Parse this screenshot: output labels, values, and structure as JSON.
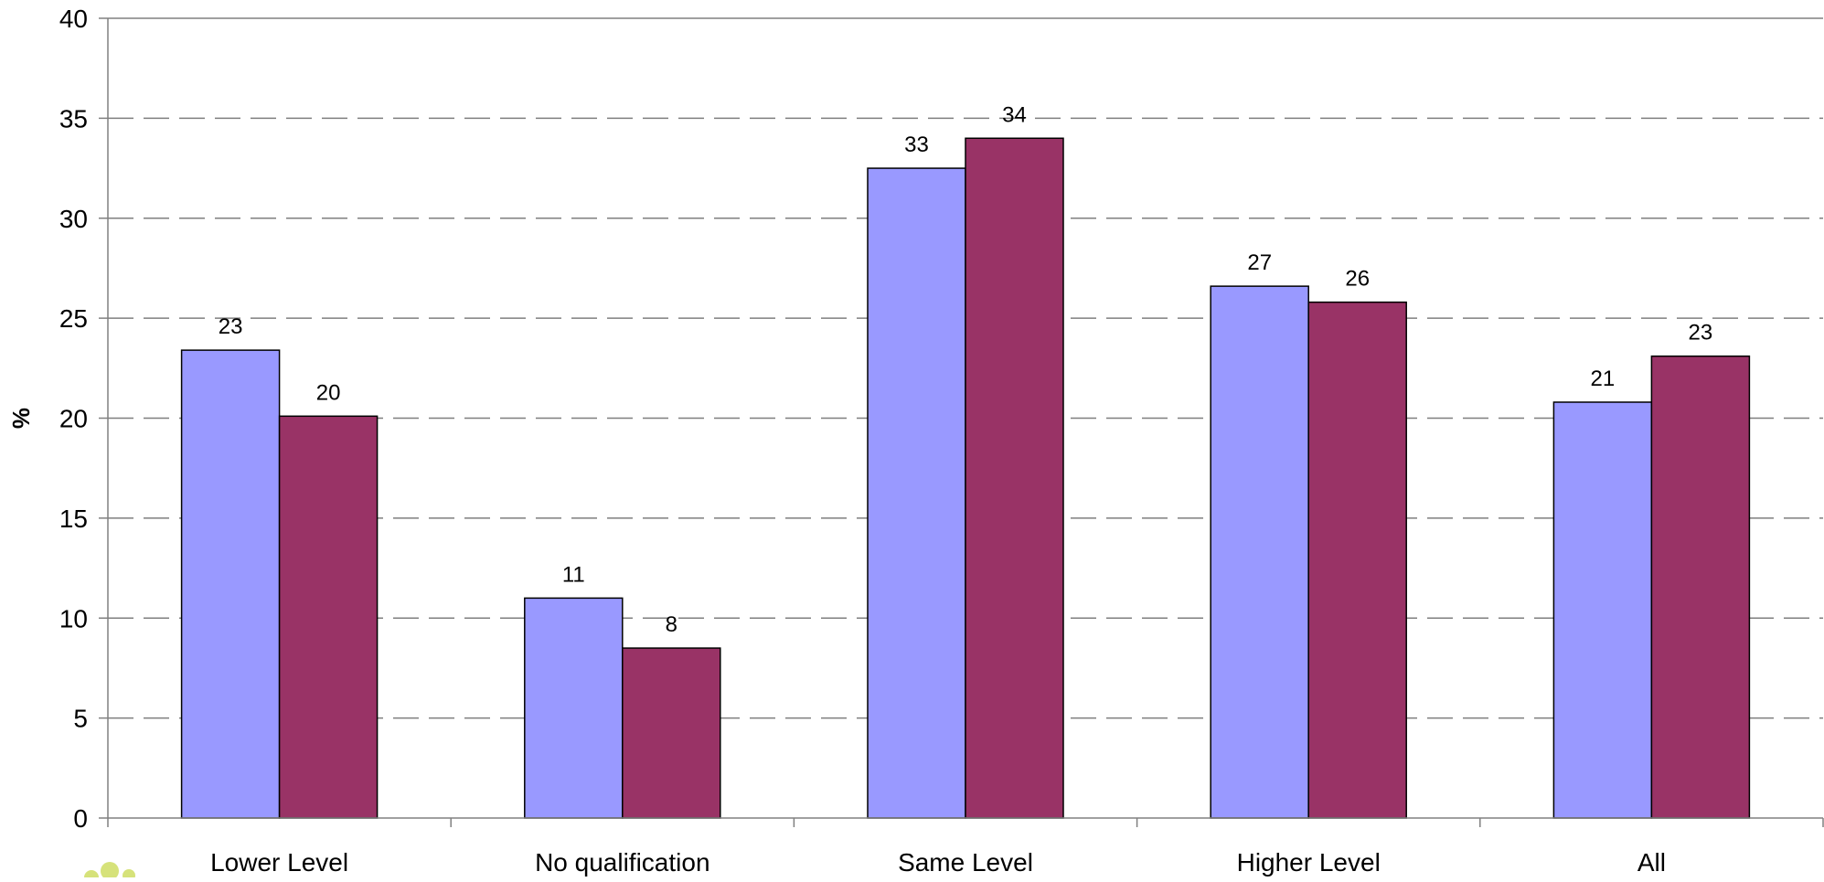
{
  "chart_data": {
    "type": "bar",
    "title": "",
    "xlabel": "",
    "ylabel": "%",
    "ylim": [
      0,
      40
    ],
    "yticks": [
      "0",
      "5",
      "10",
      "15",
      "20",
      "25",
      "30",
      "35",
      "40"
    ],
    "categories": [
      "Lower Level",
      "No qualification",
      "Same Level",
      "Higher Level",
      "All"
    ],
    "series": [
      {
        "color": "#9999ff",
        "values": [
          23.4,
          11.0,
          32.5,
          26.6,
          20.8
        ],
        "labels": [
          "23",
          "11",
          "33",
          "27",
          "21"
        ]
      },
      {
        "color": "#993366",
        "values": [
          20.1,
          8.5,
          34.0,
          25.8,
          23.1
        ],
        "labels": [
          "20",
          "8",
          "34",
          "26",
          "23"
        ]
      }
    ],
    "grid": "horizontal-dashed",
    "legend": "none"
  },
  "colors": {
    "grid": "#7f7f7f",
    "axis": "#808080",
    "bar_outline": "#000000",
    "logo_accent": "#d6e27a"
  }
}
